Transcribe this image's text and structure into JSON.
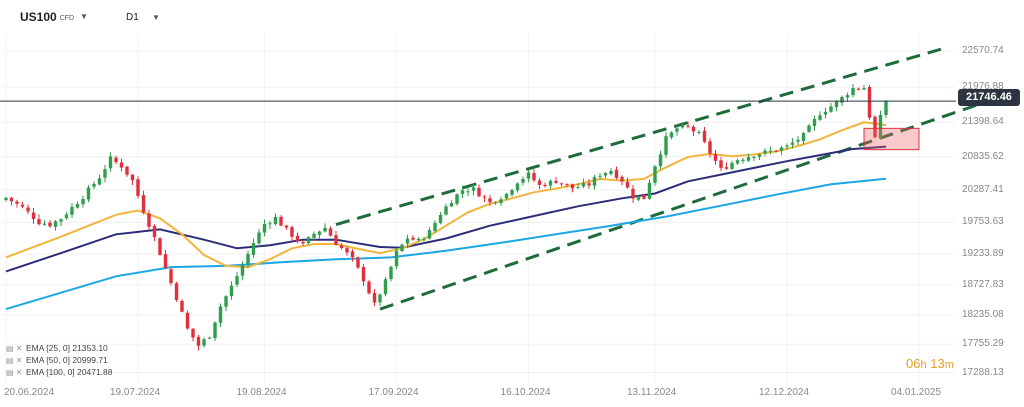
{
  "header": {
    "symbol": "US100",
    "instrument_type": "CFD",
    "timeframe": "D1"
  },
  "last_price_label": "21746.46",
  "timer": {
    "hours": "06",
    "h_unit": "h",
    "minutes": "13",
    "m_unit": "m"
  },
  "colors": {
    "bull": "#2e9e4f",
    "bear": "#e0303c",
    "ema25": "#f2b43a",
    "ema50": "#2d2c7a",
    "ema100": "#1aa7e6",
    "channel": "#1e6b3c"
  },
  "chart_data": {
    "type": "candlestick",
    "title": "",
    "xlabel": "",
    "ylabel": "",
    "ylim": [
      17100,
      22850
    ],
    "x_tick_labels": [
      "20.06.2024",
      "19.07.2024",
      "19.08.2024",
      "17.09.2024",
      "16.10.2024",
      "13.11.2024",
      "12.12.2024",
      "04.01.2025"
    ],
    "y_tick_labels": [
      "22570.74",
      "21976.88",
      "21398.64",
      "20835.62",
      "20287.41",
      "19753.63",
      "19233.89",
      "18727.83",
      "18235.08",
      "17755.29",
      "17288.13"
    ],
    "last_price": 21746.46,
    "indicators": [
      {
        "name": "EMA [25, 0]",
        "value": "21353.10",
        "color": "#f2b43a"
      },
      {
        "name": "EMA [50, 0]",
        "value": "20999.71",
        "color": "#2d2c7a"
      },
      {
        "name": "EMA [100, 0]",
        "value": "20471.88",
        "color": "#1aa7e6"
      }
    ],
    "x_index_range": [
      0,
      166
    ],
    "anchors": [
      [
        0,
        20160
      ],
      [
        3,
        20000
      ],
      [
        6,
        19760
      ],
      [
        8,
        19720
      ],
      [
        10,
        19820
      ],
      [
        14,
        20180
      ],
      [
        17,
        20500
      ],
      [
        19,
        20800
      ],
      [
        21,
        20680
      ],
      [
        23,
        20440
      ],
      [
        25,
        19950
      ],
      [
        27,
        19500
      ],
      [
        29,
        19000
      ],
      [
        31,
        18520
      ],
      [
        33,
        18000
      ],
      [
        35,
        17730
      ],
      [
        37,
        17900
      ],
      [
        39,
        18380
      ],
      [
        41,
        18700
      ],
      [
        43,
        19050
      ],
      [
        45,
        19420
      ],
      [
        47,
        19730
      ],
      [
        49,
        19830
      ],
      [
        51,
        19630
      ],
      [
        54,
        19380
      ],
      [
        56,
        19570
      ],
      [
        58,
        19670
      ],
      [
        60,
        19420
      ],
      [
        63,
        19150
      ],
      [
        65,
        18820
      ],
      [
        67,
        18400
      ],
      [
        69,
        18780
      ],
      [
        71,
        19260
      ],
      [
        73,
        19500
      ],
      [
        75,
        19450
      ],
      [
        77,
        19600
      ],
      [
        79,
        19900
      ],
      [
        81,
        20120
      ],
      [
        83,
        20290
      ],
      [
        85,
        20300
      ],
      [
        88,
        20080
      ],
      [
        91,
        20220
      ],
      [
        93,
        20430
      ],
      [
        95,
        20540
      ],
      [
        97,
        20360
      ],
      [
        100,
        20440
      ],
      [
        103,
        20320
      ],
      [
        106,
        20380
      ],
      [
        108,
        20550
      ],
      [
        110,
        20610
      ],
      [
        112,
        20450
      ],
      [
        114,
        20180
      ],
      [
        116,
        20160
      ],
      [
        118,
        20700
      ],
      [
        120,
        21130
      ],
      [
        122,
        21300
      ],
      [
        124,
        21320
      ],
      [
        126,
        21200
      ],
      [
        128,
        20900
      ],
      [
        130,
        20620
      ],
      [
        133,
        20790
      ],
      [
        136,
        20870
      ],
      [
        139,
        20920
      ],
      [
        142,
        21000
      ],
      [
        145,
        21180
      ],
      [
        148,
        21550
      ],
      [
        151,
        21720
      ],
      [
        154,
        21960
      ],
      [
        156,
        21970
      ],
      [
        157,
        21500
      ],
      [
        158,
        21140
      ],
      [
        159,
        21480
      ],
      [
        160,
        21746
      ]
    ],
    "ema25": [
      [
        0,
        19180
      ],
      [
        10,
        19520
      ],
      [
        20,
        19880
      ],
      [
        24,
        19950
      ],
      [
        28,
        19820
      ],
      [
        32,
        19560
      ],
      [
        36,
        19220
      ],
      [
        40,
        19040
      ],
      [
        44,
        19020
      ],
      [
        48,
        19150
      ],
      [
        52,
        19330
      ],
      [
        56,
        19400
      ],
      [
        60,
        19400
      ],
      [
        64,
        19320
      ],
      [
        68,
        19250
      ],
      [
        72,
        19330
      ],
      [
        76,
        19480
      ],
      [
        80,
        19700
      ],
      [
        84,
        19920
      ],
      [
        88,
        20060
      ],
      [
        92,
        20150
      ],
      [
        96,
        20250
      ],
      [
        100,
        20310
      ],
      [
        104,
        20380
      ],
      [
        108,
        20470
      ],
      [
        112,
        20440
      ],
      [
        116,
        20470
      ],
      [
        120,
        20660
      ],
      [
        124,
        20830
      ],
      [
        128,
        20880
      ],
      [
        132,
        20840
      ],
      [
        136,
        20870
      ],
      [
        140,
        20920
      ],
      [
        144,
        21010
      ],
      [
        148,
        21120
      ],
      [
        152,
        21270
      ],
      [
        156,
        21400
      ],
      [
        158,
        21380
      ],
      [
        160,
        21353
      ]
    ],
    "ema50": [
      [
        0,
        18950
      ],
      [
        10,
        19250
      ],
      [
        20,
        19560
      ],
      [
        28,
        19640
      ],
      [
        36,
        19470
      ],
      [
        42,
        19330
      ],
      [
        48,
        19380
      ],
      [
        54,
        19470
      ],
      [
        60,
        19470
      ],
      [
        68,
        19350
      ],
      [
        72,
        19340
      ],
      [
        80,
        19490
      ],
      [
        88,
        19700
      ],
      [
        96,
        19860
      ],
      [
        104,
        20020
      ],
      [
        112,
        20150
      ],
      [
        118,
        20230
      ],
      [
        124,
        20430
      ],
      [
        130,
        20540
      ],
      [
        136,
        20650
      ],
      [
        142,
        20760
      ],
      [
        148,
        20860
      ],
      [
        154,
        20960
      ],
      [
        160,
        21000
      ]
    ],
    "ema100": [
      [
        0,
        18330
      ],
      [
        10,
        18600
      ],
      [
        20,
        18870
      ],
      [
        30,
        19020
      ],
      [
        40,
        19040
      ],
      [
        50,
        19100
      ],
      [
        60,
        19150
      ],
      [
        70,
        19180
      ],
      [
        80,
        19290
      ],
      [
        90,
        19420
      ],
      [
        100,
        19560
      ],
      [
        110,
        19700
      ],
      [
        120,
        19850
      ],
      [
        130,
        20030
      ],
      [
        140,
        20210
      ],
      [
        150,
        20380
      ],
      [
        160,
        20472
      ]
    ],
    "channel": {
      "upper": {
        "from": [
          60,
          19720
        ],
        "to": [
          170,
          22600
        ]
      },
      "lower": {
        "from": [
          68,
          18330
        ],
        "to": [
          180,
          21790
        ]
      }
    },
    "highlight_box": {
      "x_from": 156,
      "x_to": 166,
      "y_from": 20950,
      "y_to": 21300
    }
  }
}
